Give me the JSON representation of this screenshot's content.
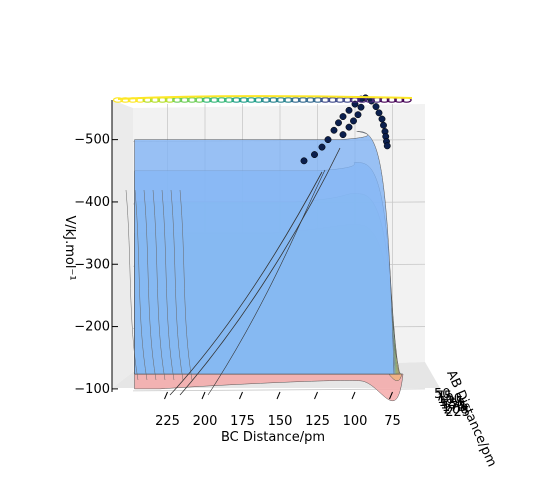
{
  "chart_data": {
    "type": "surface3d",
    "title": "",
    "xlabel": "BC Distance/pm",
    "ylabel": "AB Distance/pm",
    "zlabel": "V/kJ.mol⁻¹",
    "xlim": [
      50,
      250
    ],
    "zlim": [
      -570,
      -95
    ],
    "x_ticks": [
      225,
      200,
      175,
      150,
      125,
      100,
      75
    ],
    "y_ticks": [
      "50",
      "75",
      "100",
      "125",
      "150",
      "175",
      "200",
      "225"
    ],
    "z_ticks": [
      -500,
      -400,
      -300,
      -200,
      -100
    ],
    "z_tick_labels": [
      "−500",
      "−400",
      "−300",
      "−200",
      "−100"
    ],
    "contour_levels": [
      {
        "z": -100,
        "color": "#f5a3a3"
      },
      {
        "z": -150,
        "color": "#f0b27a"
      },
      {
        "z": -200,
        "color": "#efc97e"
      },
      {
        "z": -250,
        "color": "#f2e47f"
      },
      {
        "z": -300,
        "color": "#f3f59c"
      },
      {
        "z": -350,
        "color": "#c7f08c"
      },
      {
        "z": -400,
        "color": "#a3ecc0"
      },
      {
        "z": -450,
        "color": "#9ec9f3"
      },
      {
        "z": -500,
        "color": "#7fb2f5"
      }
    ],
    "trajectory": [
      {
        "x": 93,
        "z": -567
      },
      {
        "x": 89,
        "z": -562
      },
      {
        "x": 86,
        "z": -553
      },
      {
        "x": 84,
        "z": -543
      },
      {
        "x": 82,
        "z": -533
      },
      {
        "x": 81,
        "z": -523
      },
      {
        "x": 80,
        "z": -513
      },
      {
        "x": 79.5,
        "z": -505
      },
      {
        "x": 79,
        "z": -497
      },
      {
        "x": 78.5,
        "z": -490
      },
      {
        "x": 96,
        "z": -565
      },
      {
        "x": 100,
        "z": -557
      },
      {
        "x": 104,
        "z": -547
      },
      {
        "x": 108,
        "z": -537
      },
      {
        "x": 111,
        "z": -527
      },
      {
        "x": 114,
        "z": -515
      },
      {
        "x": 118,
        "z": -500
      },
      {
        "x": 122,
        "z": -488
      },
      {
        "x": 127,
        "z": -476
      },
      {
        "x": 134,
        "z": -466
      },
      {
        "x": 96,
        "z": -552
      },
      {
        "x": 98,
        "z": -540
      },
      {
        "x": 101,
        "z": -530
      },
      {
        "x": 104,
        "z": -520
      },
      {
        "x": 108,
        "z": -508
      }
    ]
  }
}
